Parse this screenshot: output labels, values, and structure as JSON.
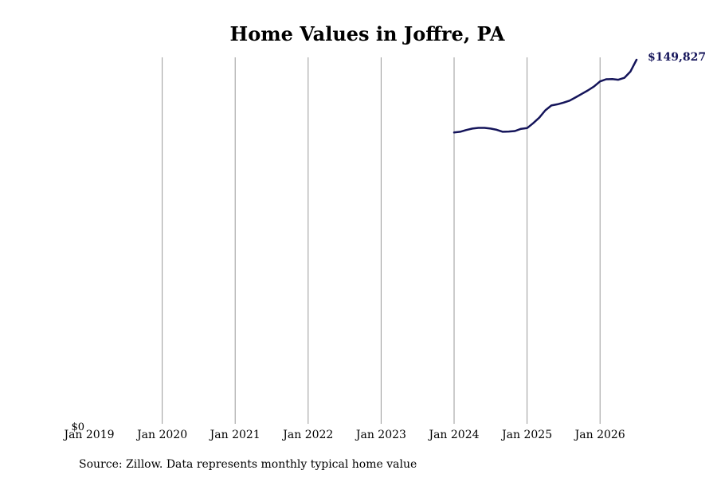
{
  "chart_data": {
    "type": "line",
    "title": "Home Values in Joffre, PA",
    "xlabel": "",
    "ylabel": "",
    "x_tick_labels": [
      "Jan 2019",
      "Jan 2020",
      "Jan 2021",
      "Jan 2022",
      "Jan 2023",
      "Jan 2024",
      "Jan 2025",
      "Jan 2026"
    ],
    "y_tick_labels": [
      "$0"
    ],
    "ylim": [
      0,
      149827
    ],
    "grid": "vertical",
    "line_color": "#14145a",
    "end_label": "$149,827",
    "series": [
      {
        "x": [
          "2024-01",
          "2024-02",
          "2024-03",
          "2024-04",
          "2024-05",
          "2024-06",
          "2024-07",
          "2024-08",
          "2024-09",
          "2024-10",
          "2024-11",
          "2024-12",
          "2025-01",
          "2025-02",
          "2025-03",
          "2025-04",
          "2025-05",
          "2025-06",
          "2025-07",
          "2025-08",
          "2025-09",
          "2025-10",
          "2025-11",
          "2025-12",
          "2026-01",
          "2026-02",
          "2026-03",
          "2026-04",
          "2026-05",
          "2026-06",
          "2026-07"
        ],
        "values": [
          119900,
          120200,
          120900,
          121500,
          121800,
          121800,
          121500,
          121000,
          120200,
          120300,
          120500,
          121400,
          121700,
          123700,
          126000,
          129000,
          131000,
          131500,
          132200,
          133000,
          134400,
          135800,
          137200,
          138800,
          140900,
          141800,
          141900,
          141600,
          142400,
          145000,
          149827
        ]
      }
    ]
  },
  "source_text": "Source: Zillow. Data represents monthly typical home value"
}
